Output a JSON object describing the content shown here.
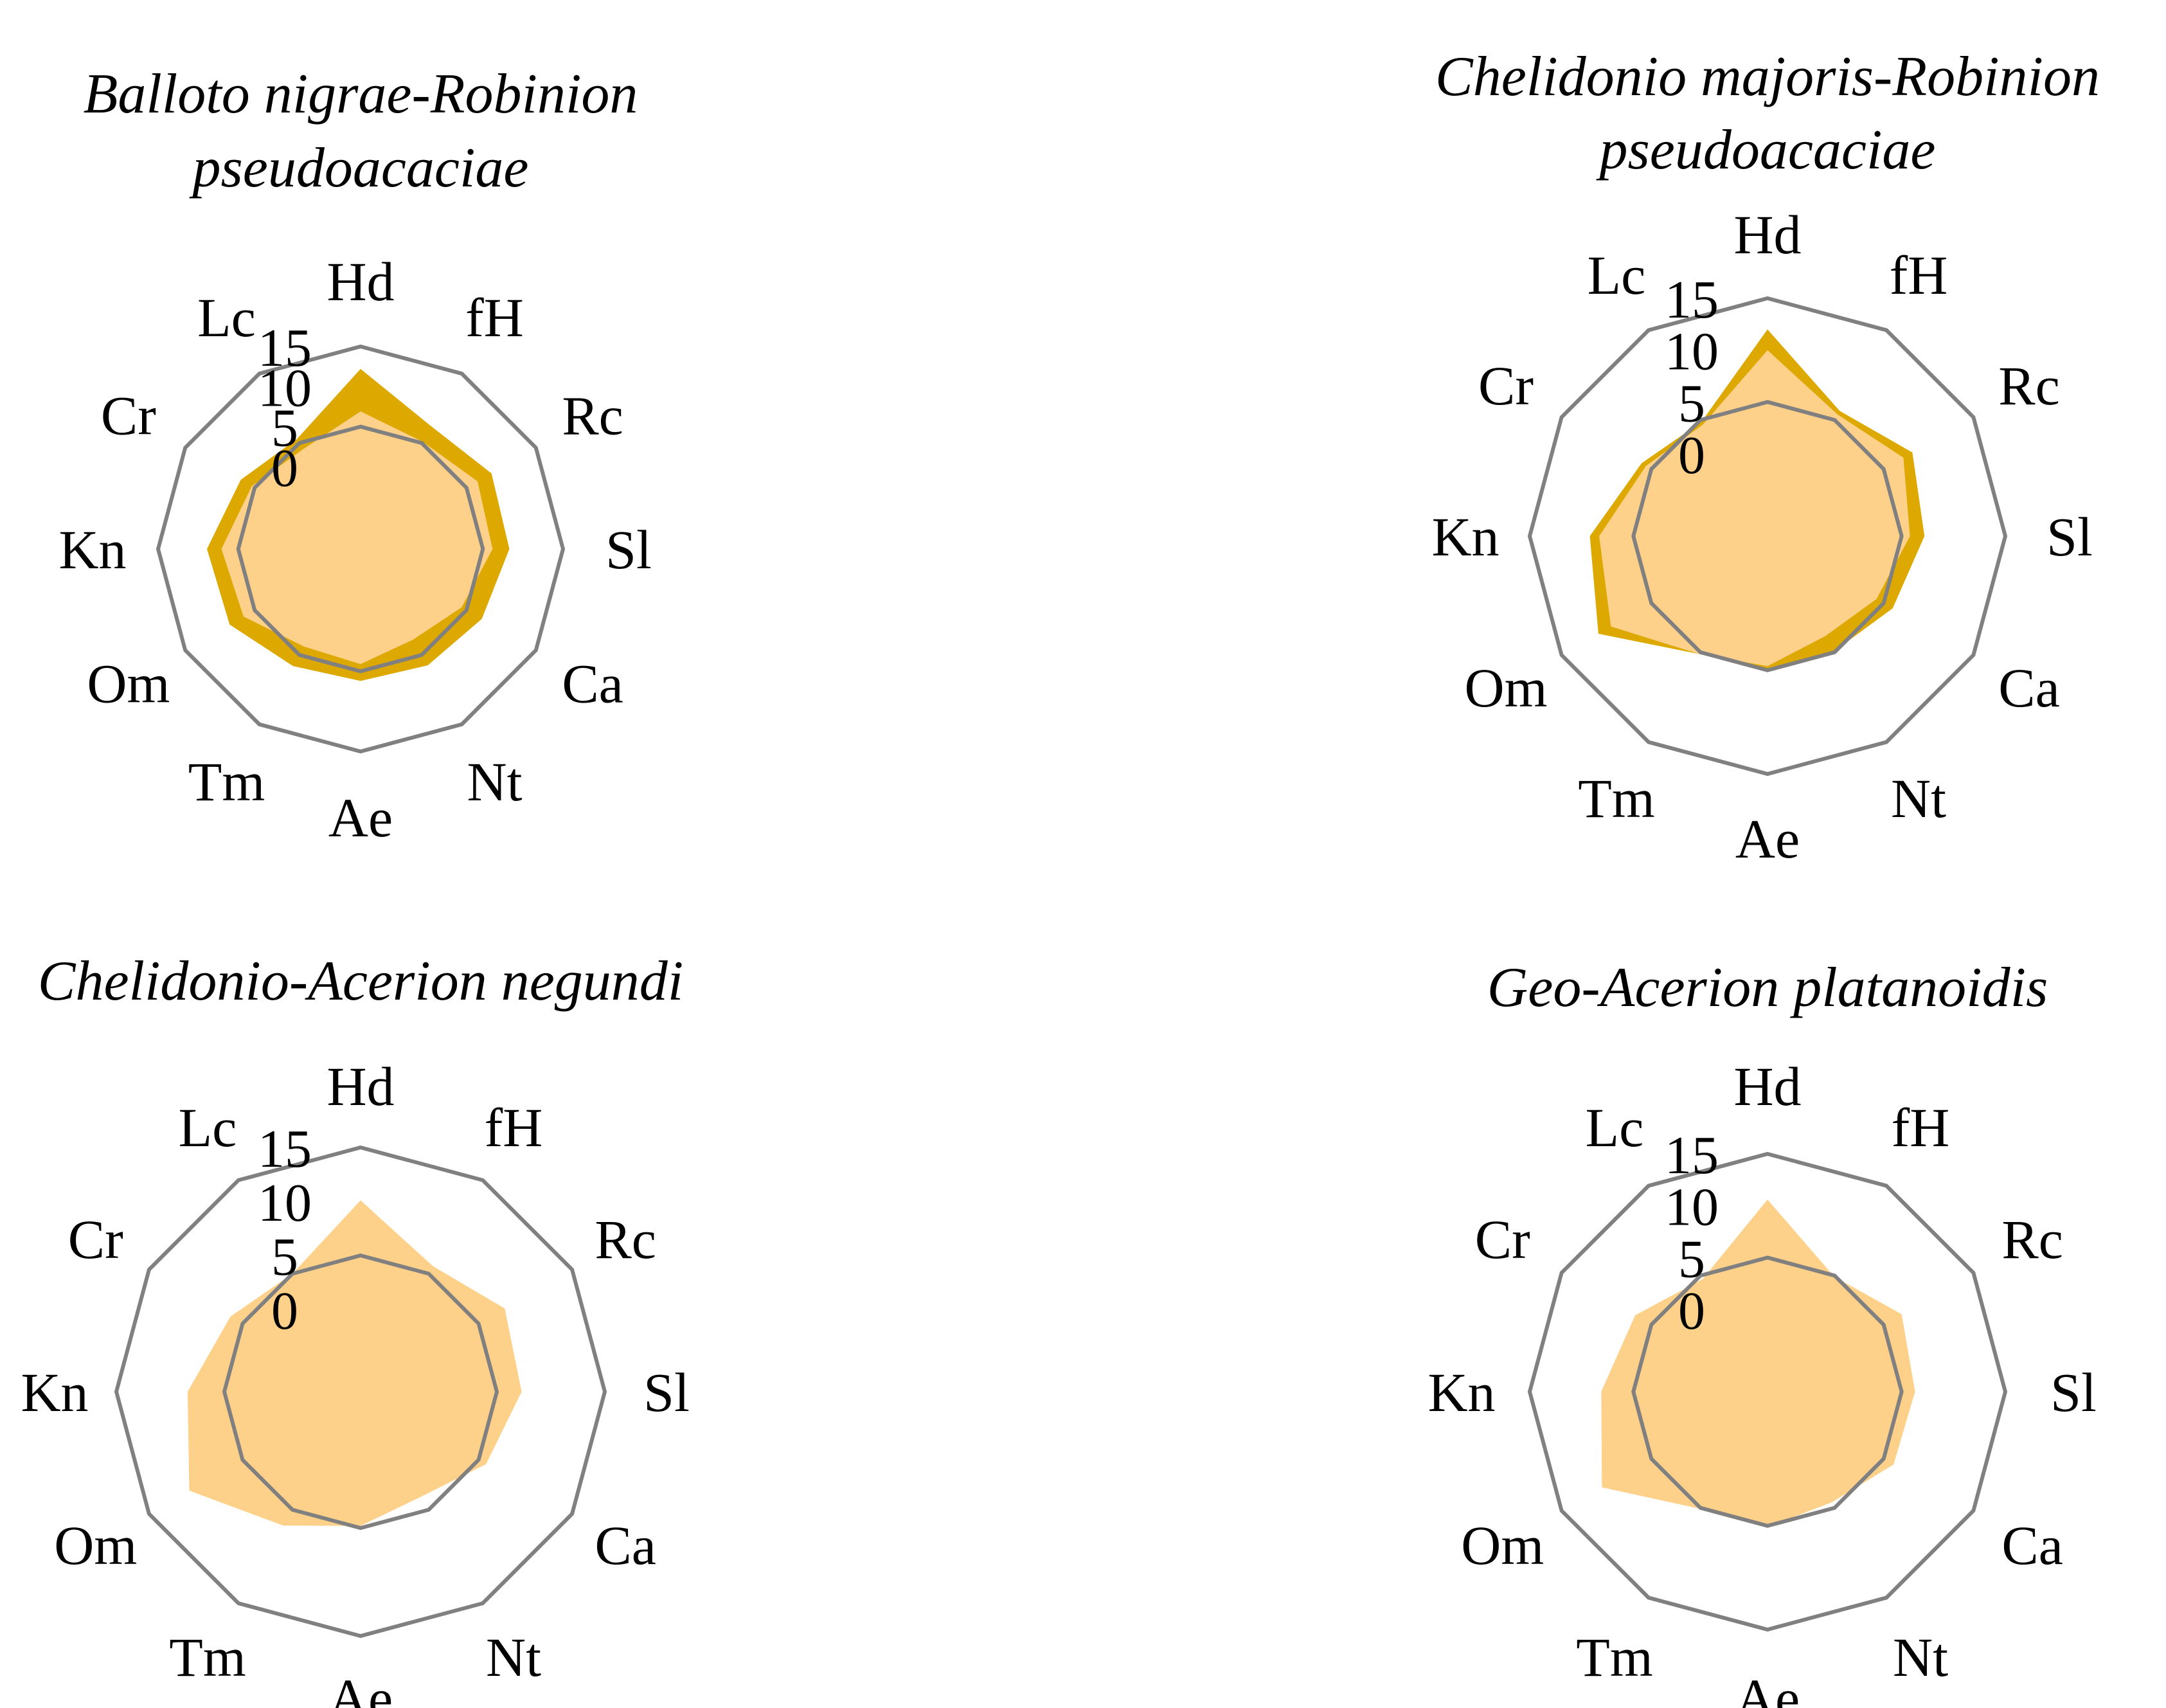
{
  "colors": {
    "dark_fill": "#DDA800",
    "light_fill": "#FED18A",
    "grid": "#808080"
  },
  "chart_data": [
    {
      "type": "radar",
      "title": "Balloto nigrae-Robinion pseudoacaciae",
      "title_lines": [
        "Balloto nigrae-Robinion",
        "pseudoacaciae"
      ],
      "axes": [
        "Hd",
        "fH",
        "Rc",
        "Sl",
        "Ca",
        "Nt",
        "Ae",
        "Tm",
        "Om",
        "Kn",
        "Cr",
        "Lc"
      ],
      "rlim": [
        0,
        15
      ],
      "ticks": [
        {
          "value": 0,
          "label": "0"
        },
        {
          "value": 5,
          "label": "5"
        },
        {
          "value": 10,
          "label": "10"
        },
        {
          "value": 15,
          "label": "15"
        }
      ],
      "grid_rings": [
        5,
        15
      ],
      "series": [
        {
          "name": "outer",
          "color": "#DDA800",
          "values": [
            12.2,
            7.4,
            8.6,
            8.3,
            7.2,
            6.5,
            6.2,
            6.6,
            8.6,
            8.9,
            7.0,
            5.6
          ]
        },
        {
          "name": "inner",
          "color": "#FED18A",
          "values": [
            6.9,
            5.2,
            6.6,
            6.2,
            4.3,
            2.8,
            4.1,
            3.8,
            6.6,
            7.1,
            5.4,
            4.1
          ]
        }
      ]
    },
    {
      "type": "radar",
      "title": "Chelidonio majoris-Robinion pseudoacaciae",
      "title_lines": [
        "Chelidonio majoris-Robinion",
        "pseudoacaciae"
      ],
      "axes": [
        "Hd",
        "fH",
        "Rc",
        "Sl",
        "Ca",
        "Nt",
        "Ae",
        "Tm",
        "Om",
        "Kn",
        "Cr",
        "Lc"
      ],
      "rlim": [
        0,
        15
      ],
      "ticks": [
        {
          "value": 0,
          "label": "0"
        },
        {
          "value": 5,
          "label": "5"
        },
        {
          "value": 10,
          "label": "10"
        },
        {
          "value": 15,
          "label": "15"
        }
      ],
      "grid_rings": [
        5,
        15
      ],
      "series": [
        {
          "name": "outer",
          "color": "#DDA800",
          "values": [
            12.0,
            6.0,
            8.2,
            7.2,
            6.0,
            4.9,
            4.9,
            5.2,
            10.9,
            9.2,
            6.1,
            4.8
          ]
        },
        {
          "name": "inner",
          "color": "#FED18A",
          "values": [
            10.0,
            5.6,
            7.2,
            5.8,
            4.2,
            3.2,
            4.6,
            5.2,
            9.5,
            8.3,
            5.6,
            4.5
          ]
        }
      ]
    },
    {
      "type": "radar",
      "title": "Chelidonio-Acerion negundi",
      "title_lines": [
        "Chelidonio-Acerion negundi"
      ],
      "axes": [
        "Hd",
        "fH",
        "Rc",
        "Sl",
        "Ca",
        "Nt",
        "Ae",
        "Tm",
        "Om",
        "Kn",
        "Cr",
        "Lc"
      ],
      "rlim": [
        0,
        15
      ],
      "ticks": [
        {
          "value": 0,
          "label": "0"
        },
        {
          "value": 5,
          "label": "5"
        },
        {
          "value": 10,
          "label": "10"
        },
        {
          "value": 15,
          "label": "15"
        }
      ],
      "grid_rings": [
        5,
        15
      ],
      "series": [
        {
          "name": "inner",
          "color": "#FED18A",
          "values": [
            10.1,
            5.8,
            7.8,
            7.3,
            5.8,
            3.6,
            4.8,
            6.7,
            10.7,
            8.4,
            6.3,
            5.0
          ]
        }
      ]
    },
    {
      "type": "radar",
      "title": "Geo-Acerion platanoidis",
      "title_lines": [
        "Geo-Acerion platanoidis"
      ],
      "axes": [
        "Hd",
        "fH",
        "Rc",
        "Sl",
        "Ca",
        "Nt",
        "Ae",
        "Tm",
        "Om",
        "Kn",
        "Cr",
        "Lc"
      ],
      "rlim": [
        0,
        15
      ],
      "ticks": [
        {
          "value": 0,
          "label": "0"
        },
        {
          "value": 5,
          "label": "5"
        },
        {
          "value": 10,
          "label": "10"
        },
        {
          "value": 15,
          "label": "15"
        }
      ],
      "grid_rings": [
        5,
        15
      ],
      "series": [
        {
          "name": "inner",
          "color": "#FED18A",
          "values": [
            10.6,
            4.9,
            7.0,
            6.3,
            6.1,
            4.4,
            5.1,
            5.1,
            10.5,
            8.1,
            6.8,
            4.6
          ]
        }
      ]
    }
  ]
}
